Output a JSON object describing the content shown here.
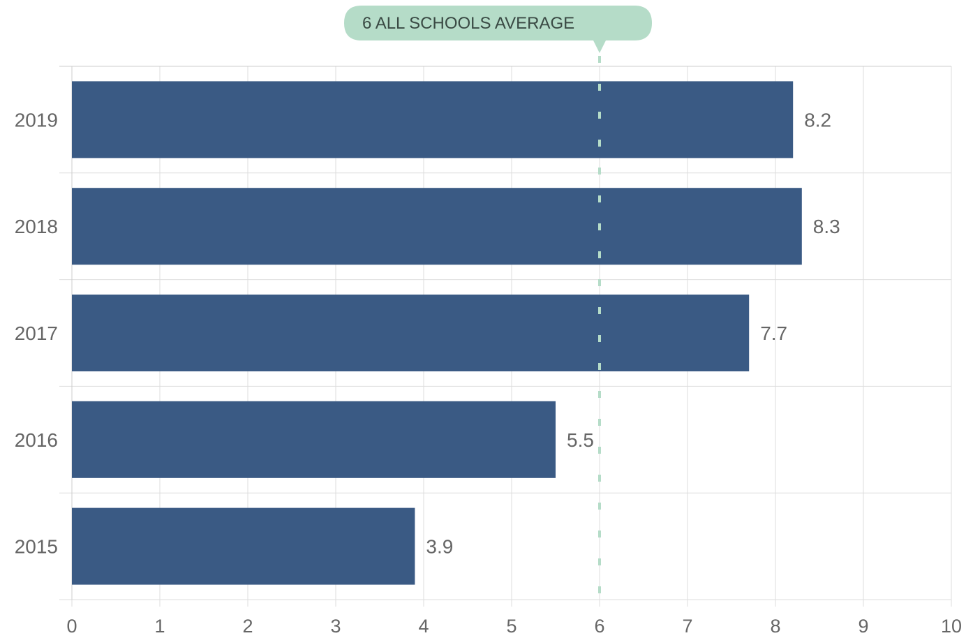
{
  "chart_data": {
    "type": "bar",
    "orientation": "horizontal",
    "categories": [
      "2019",
      "2018",
      "2017",
      "2016",
      "2015"
    ],
    "values": [
      8.2,
      8.3,
      7.7,
      5.5,
      3.9
    ],
    "value_labels": [
      "8.2",
      "8.3",
      "7.7",
      "5.5",
      "3.9"
    ],
    "xlim": [
      0,
      10
    ],
    "xticks": [
      "0",
      "1",
      "2",
      "3",
      "4",
      "5",
      "6",
      "7",
      "8",
      "9",
      "10"
    ],
    "grid": true,
    "reference_line": {
      "value": 6,
      "label": "6 ALL SCHOOLS AVERAGE"
    },
    "colors": {
      "bar": "#3a5a84",
      "reference": "#b5dcc8",
      "grid": "#dddddd"
    }
  }
}
